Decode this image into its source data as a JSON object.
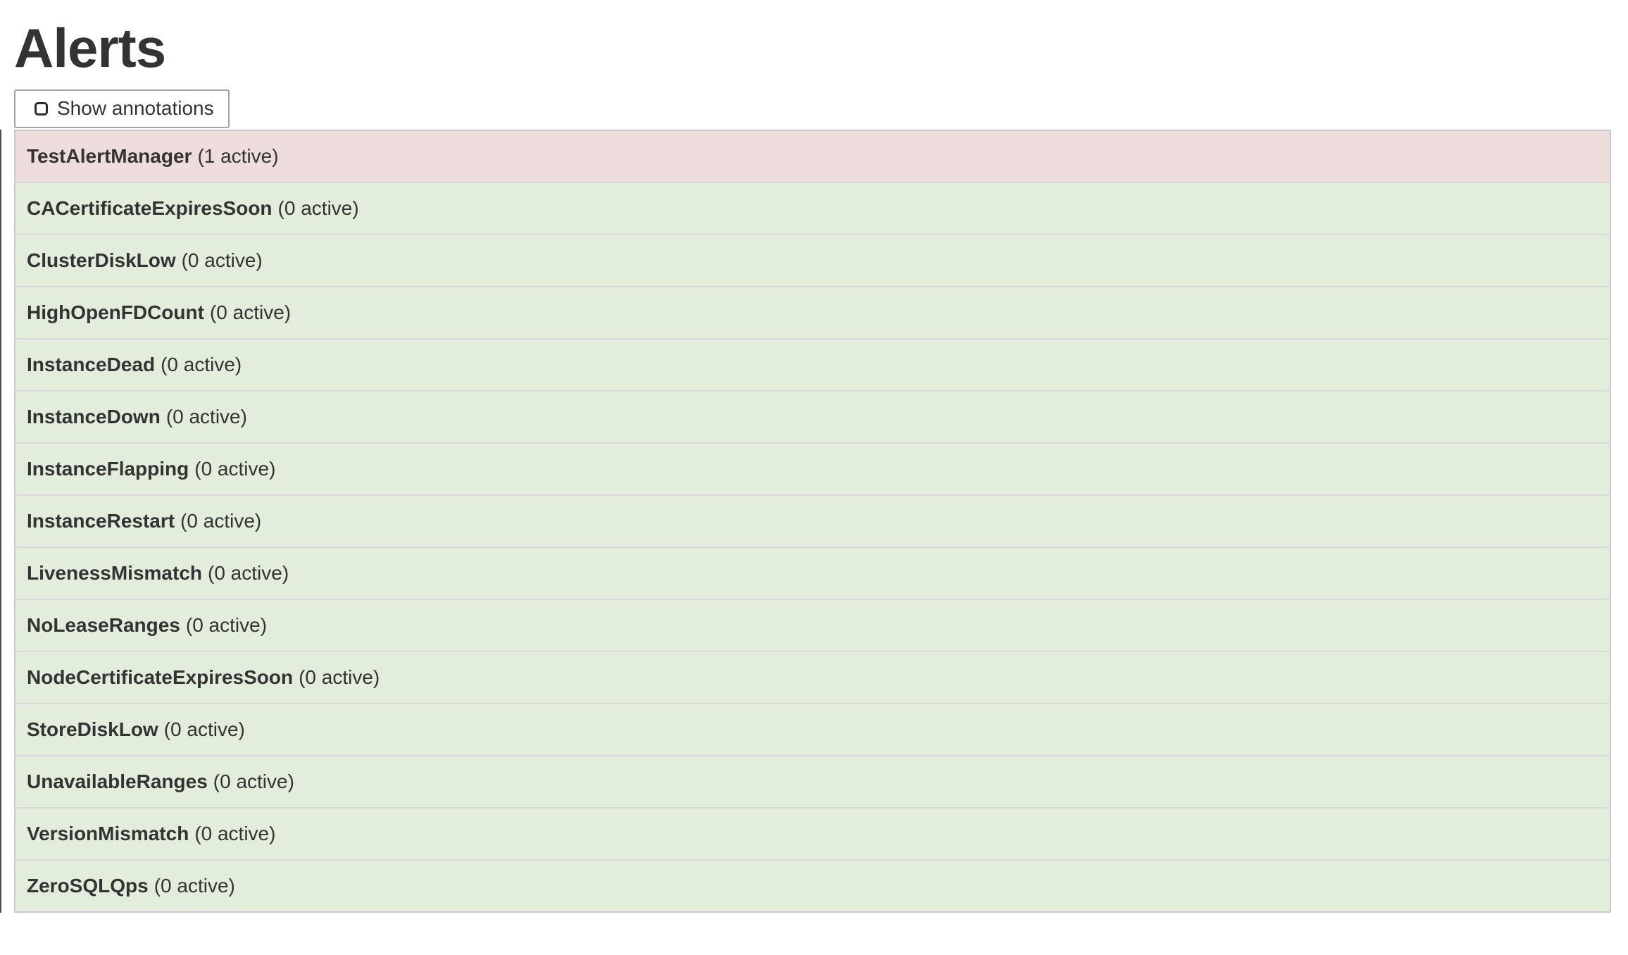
{
  "page": {
    "title": "Alerts"
  },
  "toolbar": {
    "show_annotations_label": "Show annotations",
    "checkbox_checked": false
  },
  "alerts": [
    {
      "name": "TestAlertManager",
      "active_count": 1,
      "count_label": "(1 active)",
      "state": "firing"
    },
    {
      "name": "CACertificateExpiresSoon",
      "active_count": 0,
      "count_label": "(0 active)",
      "state": "inactive"
    },
    {
      "name": "ClusterDiskLow",
      "active_count": 0,
      "count_label": "(0 active)",
      "state": "inactive"
    },
    {
      "name": "HighOpenFDCount",
      "active_count": 0,
      "count_label": "(0 active)",
      "state": "inactive"
    },
    {
      "name": "InstanceDead",
      "active_count": 0,
      "count_label": "(0 active)",
      "state": "inactive"
    },
    {
      "name": "InstanceDown",
      "active_count": 0,
      "count_label": "(0 active)",
      "state": "inactive"
    },
    {
      "name": "InstanceFlapping",
      "active_count": 0,
      "count_label": "(0 active)",
      "state": "inactive"
    },
    {
      "name": "InstanceRestart",
      "active_count": 0,
      "count_label": "(0 active)",
      "state": "inactive"
    },
    {
      "name": "LivenessMismatch",
      "active_count": 0,
      "count_label": "(0 active)",
      "state": "inactive"
    },
    {
      "name": "NoLeaseRanges",
      "active_count": 0,
      "count_label": "(0 active)",
      "state": "inactive"
    },
    {
      "name": "NodeCertificateExpiresSoon",
      "active_count": 0,
      "count_label": "(0 active)",
      "state": "inactive"
    },
    {
      "name": "StoreDiskLow",
      "active_count": 0,
      "count_label": "(0 active)",
      "state": "inactive"
    },
    {
      "name": "UnavailableRanges",
      "active_count": 0,
      "count_label": "(0 active)",
      "state": "inactive"
    },
    {
      "name": "VersionMismatch",
      "active_count": 0,
      "count_label": "(0 active)",
      "state": "inactive"
    },
    {
      "name": "ZeroSQLQps",
      "active_count": 0,
      "count_label": "(0 active)",
      "state": "inactive"
    }
  ],
  "colors": {
    "firing_bg": "#efdddd",
    "inactive_bg": "#e2eedb",
    "row_border": "#d9d9d9",
    "outer_border": "#c9c9c9",
    "text": "#333333"
  }
}
